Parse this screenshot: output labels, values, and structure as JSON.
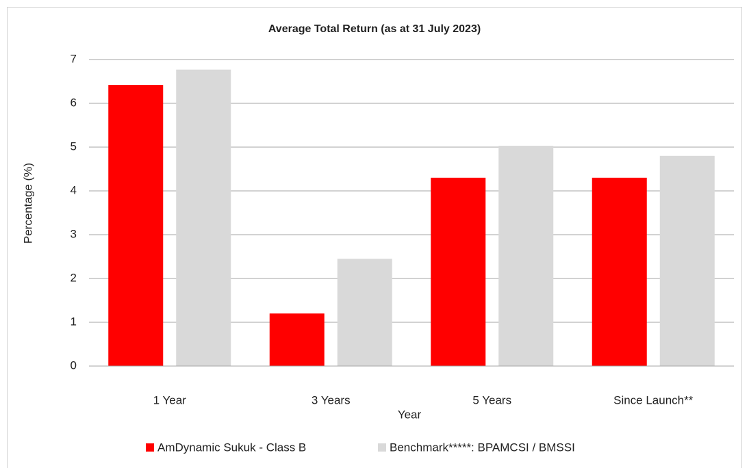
{
  "chart_data": {
    "type": "bar",
    "title": "Average Total Return (as at 31 July 2023)",
    "x_label": "Year",
    "y_label": "Percentage (%)",
    "categories": [
      "1 Year",
      "3 Years",
      "5 Years",
      "Since Launch**"
    ],
    "series": [
      {
        "name": "AmDynamic Sukuk - Class B",
        "color": "#ff0000",
        "values": [
          6.42,
          1.2,
          4.3,
          4.3
        ]
      },
      {
        "name": "Benchmark*****: BPAMCSI / BMSSI",
        "color": "#d9d9d9",
        "values": [
          6.77,
          2.45,
          5.03,
          4.8
        ]
      }
    ],
    "ylim": [
      0,
      7
    ],
    "yticks": [
      0,
      1,
      2,
      3,
      4,
      5,
      6,
      7
    ],
    "grid": true,
    "legend": "bottom"
  }
}
